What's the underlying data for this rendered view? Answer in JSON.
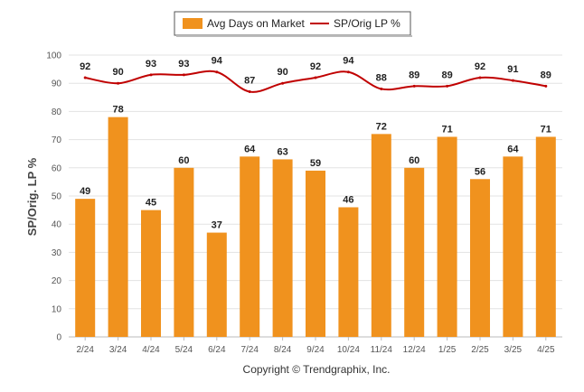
{
  "chart_data": {
    "type": "bar",
    "categories": [
      "2/24",
      "3/24",
      "4/24",
      "5/24",
      "6/24",
      "7/24",
      "8/24",
      "9/24",
      "10/24",
      "11/24",
      "12/24",
      "1/25",
      "2/25",
      "3/25",
      "4/25"
    ],
    "series": [
      {
        "name": "Avg Days on Market",
        "type": "bar",
        "color": "#f0921e",
        "values": [
          49,
          78,
          45,
          60,
          37,
          64,
          63,
          59,
          46,
          72,
          60,
          71,
          56,
          64,
          71
        ]
      },
      {
        "name": "SP/Orig LP %",
        "type": "line",
        "color": "#c00000",
        "values": [
          92,
          90,
          93,
          93,
          94,
          87,
          90,
          92,
          94,
          88,
          89,
          89,
          92,
          91,
          89
        ]
      }
    ],
    "ylabel": "SP/Orig. LP %",
    "ylim": [
      0,
      100
    ],
    "yticks": [
      0,
      10,
      20,
      30,
      40,
      50,
      60,
      70,
      80,
      90,
      100
    ],
    "grid": true,
    "legend": "top",
    "footer": "Copyright © Trendgraphix, Inc."
  }
}
